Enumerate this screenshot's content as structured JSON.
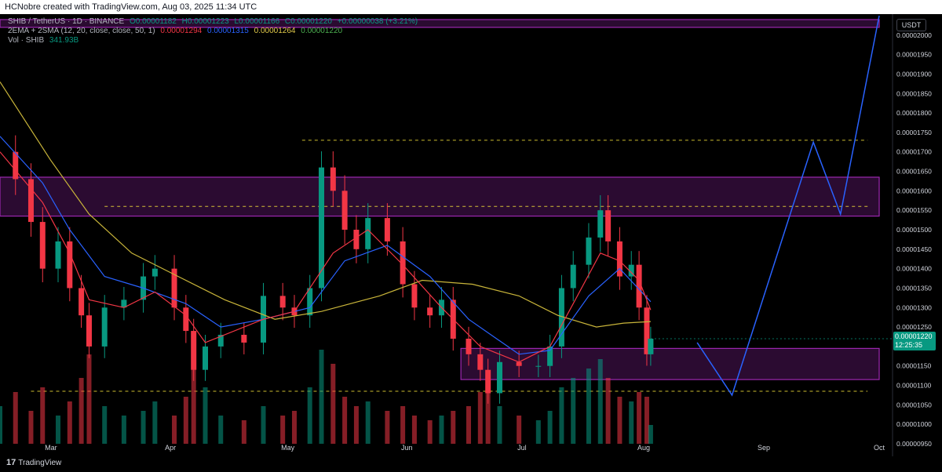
{
  "header": {
    "credit": "HCNobre created with TradingView.com, Aug 03, 2025 11:34 UTC"
  },
  "legend": {
    "symbol_line": {
      "symbol": "SHIB / TetherUS · 1D · BINANCE",
      "o": "O0.00001182",
      "h": "H0.00001223",
      "l": "L0.00001166",
      "c": "C0.00001220",
      "change": "+0.00000038 (+3.21%)"
    },
    "ma_line": {
      "name": "2EMA + 2SMA (12, 20, close, close, 50, 1)",
      "v1": "0.00001294",
      "v2": "0.00001315",
      "v3": "0.00001264",
      "v4": "0.00001220"
    },
    "vol_line": {
      "name": "Vol · SHIB",
      "value": "341.93B"
    }
  },
  "axis": {
    "currency": "USDT",
    "last_price": "0.00001220",
    "countdown": "12:25:35"
  },
  "branding": {
    "logo_text": "TradingView"
  },
  "colors": {
    "up": "#089981",
    "down": "#f23645",
    "zone": "#9c27b0",
    "projection": "#2962ff",
    "ema_fast": "#f23645",
    "ema_slow": "#2962ff",
    "sma": "#c9b53a",
    "dashed": "#ffeb3b"
  },
  "chart_data": {
    "type": "candlestick",
    "ylim": [
      9.5e-06,
      2.05e-05
    ],
    "y_ticks": [
      "0.00002000",
      "0.00001950",
      "0.00001900",
      "0.00001850",
      "0.00001800",
      "0.00001750",
      "0.00001700",
      "0.00001650",
      "0.00001600",
      "0.00001550",
      "0.00001500",
      "0.00001450",
      "0.00001400",
      "0.00001350",
      "0.00001300",
      "0.00001250",
      "0.00001200",
      "0.00001150",
      "0.00001100",
      "0.00001050",
      "0.00001000",
      "0.00000950"
    ],
    "x_ticks": [
      "Mar",
      "Apr",
      "May",
      "Jun",
      "Jul",
      "Aug",
      "Sep",
      "Oct"
    ],
    "x_range": [
      "2025-02-16",
      "2025-10-01"
    ],
    "close_series": [
      [
        "2025-02-16",
        1.7e-05
      ],
      [
        "2025-02-20",
        1.63e-05
      ],
      [
        "2025-02-24",
        1.52e-05
      ],
      [
        "2025-02-27",
        1.4e-05
      ],
      [
        "2025-03-03",
        1.47e-05
      ],
      [
        "2025-03-06",
        1.35e-05
      ],
      [
        "2025-03-09",
        1.28e-05
      ],
      [
        "2025-03-11",
        1.2e-05
      ],
      [
        "2025-03-15",
        1.3e-05
      ],
      [
        "2025-03-20",
        1.32e-05
      ],
      [
        "2025-03-25",
        1.38e-05
      ],
      [
        "2025-03-28",
        1.4e-05
      ],
      [
        "2025-04-02",
        1.3e-05
      ],
      [
        "2025-04-05",
        1.24e-05
      ],
      [
        "2025-04-07",
        1.14e-05
      ],
      [
        "2025-04-10",
        1.2e-05
      ],
      [
        "2025-04-14",
        1.23e-05
      ],
      [
        "2025-04-20",
        1.21e-05
      ],
      [
        "2025-04-25",
        1.33e-05
      ],
      [
        "2025-04-30",
        1.3e-05
      ],
      [
        "2025-05-03",
        1.28e-05
      ],
      [
        "2025-05-07",
        1.35e-05
      ],
      [
        "2025-05-10",
        1.66e-05
      ],
      [
        "2025-05-13",
        1.6e-05
      ],
      [
        "2025-05-16",
        1.5e-05
      ],
      [
        "2025-05-19",
        1.45e-05
      ],
      [
        "2025-05-22",
        1.53e-05
      ],
      [
        "2025-05-27",
        1.47e-05
      ],
      [
        "2025-05-31",
        1.36e-05
      ],
      [
        "2025-06-03",
        1.3e-05
      ],
      [
        "2025-06-07",
        1.28e-05
      ],
      [
        "2025-06-10",
        1.32e-05
      ],
      [
        "2025-06-13",
        1.22e-05
      ],
      [
        "2025-06-17",
        1.18e-05
      ],
      [
        "2025-06-20",
        1.14e-05
      ],
      [
        "2025-06-22",
        1.08e-05
      ],
      [
        "2025-06-25",
        1.16e-05
      ],
      [
        "2025-06-30",
        1.15e-05
      ],
      [
        "2025-07-05",
        1.15e-05
      ],
      [
        "2025-07-08",
        1.2e-05
      ],
      [
        "2025-07-11",
        1.35e-05
      ],
      [
        "2025-07-14",
        1.41e-05
      ],
      [
        "2025-07-18",
        1.48e-05
      ],
      [
        "2025-07-21",
        1.55e-05
      ],
      [
        "2025-07-23",
        1.47e-05
      ],
      [
        "2025-07-26",
        1.38e-05
      ],
      [
        "2025-07-29",
        1.41e-05
      ],
      [
        "2025-07-31",
        1.3e-05
      ],
      [
        "2025-08-02",
        1.18e-05
      ],
      [
        "2025-08-03",
        1.22e-05
      ]
    ],
    "ema12": [
      [
        "2025-02-16",
        1.7e-05
      ],
      [
        "2025-02-27",
        1.57e-05
      ],
      [
        "2025-03-06",
        1.44e-05
      ],
      [
        "2025-03-11",
        1.32e-05
      ],
      [
        "2025-03-20",
        1.3e-05
      ],
      [
        "2025-03-28",
        1.34e-05
      ],
      [
        "2025-04-05",
        1.28e-05
      ],
      [
        "2025-04-10",
        1.21e-05
      ],
      [
        "2025-04-25",
        1.27e-05
      ],
      [
        "2025-05-03",
        1.29e-05
      ],
      [
        "2025-05-13",
        1.44e-05
      ],
      [
        "2025-05-22",
        1.5e-05
      ],
      [
        "2025-05-31",
        1.41e-05
      ],
      [
        "2025-06-10",
        1.3e-05
      ],
      [
        "2025-06-20",
        1.2e-05
      ],
      [
        "2025-06-30",
        1.16e-05
      ],
      [
        "2025-07-08",
        1.2e-05
      ],
      [
        "2025-07-14",
        1.31e-05
      ],
      [
        "2025-07-21",
        1.44e-05
      ],
      [
        "2025-07-26",
        1.42e-05
      ],
      [
        "2025-07-31",
        1.37e-05
      ],
      [
        "2025-08-03",
        1.294e-05
      ]
    ],
    "ema20": [
      [
        "2025-02-16",
        1.74e-05
      ],
      [
        "2025-02-27",
        1.62e-05
      ],
      [
        "2025-03-06",
        1.5e-05
      ],
      [
        "2025-03-15",
        1.38e-05
      ],
      [
        "2025-03-25",
        1.35e-05
      ],
      [
        "2025-04-05",
        1.31e-05
      ],
      [
        "2025-04-14",
        1.25e-05
      ],
      [
        "2025-04-25",
        1.27e-05
      ],
      [
        "2025-05-07",
        1.3e-05
      ],
      [
        "2025-05-16",
        1.42e-05
      ],
      [
        "2025-05-27",
        1.46e-05
      ],
      [
        "2025-06-07",
        1.38e-05
      ],
      [
        "2025-06-17",
        1.27e-05
      ],
      [
        "2025-06-30",
        1.18e-05
      ],
      [
        "2025-07-08",
        1.19e-05
      ],
      [
        "2025-07-18",
        1.33e-05
      ],
      [
        "2025-07-26",
        1.4e-05
      ],
      [
        "2025-08-03",
        1.315e-05
      ]
    ],
    "sma50": [
      [
        "2025-02-16",
        1.88e-05
      ],
      [
        "2025-03-01",
        1.68e-05
      ],
      [
        "2025-03-11",
        1.54e-05
      ],
      [
        "2025-03-22",
        1.44e-05
      ],
      [
        "2025-04-03",
        1.38e-05
      ],
      [
        "2025-04-15",
        1.32e-05
      ],
      [
        "2025-04-28",
        1.27e-05
      ],
      [
        "2025-05-10",
        1.29e-05
      ],
      [
        "2025-05-25",
        1.33e-05
      ],
      [
        "2025-06-05",
        1.37e-05
      ],
      [
        "2025-06-18",
        1.36e-05
      ],
      [
        "2025-06-30",
        1.33e-05
      ],
      [
        "2025-07-10",
        1.28e-05
      ],
      [
        "2025-07-20",
        1.25e-05
      ],
      [
        "2025-07-27",
        1.26e-05
      ],
      [
        "2025-08-03",
        1.264e-05
      ]
    ],
    "volume": [
      [
        "2025-02-16",
        40
      ],
      [
        "2025-02-20",
        55
      ],
      [
        "2025-02-24",
        35
      ],
      [
        "2025-02-27",
        60
      ],
      [
        "2025-03-03",
        30
      ],
      [
        "2025-03-06",
        45
      ],
      [
        "2025-03-09",
        70
      ],
      [
        "2025-03-11",
        95
      ],
      [
        "2025-03-15",
        40
      ],
      [
        "2025-03-20",
        30
      ],
      [
        "2025-03-25",
        35
      ],
      [
        "2025-03-28",
        45
      ],
      [
        "2025-04-02",
        30
      ],
      [
        "2025-04-05",
        50
      ],
      [
        "2025-04-07",
        85
      ],
      [
        "2025-04-10",
        60
      ],
      [
        "2025-04-14",
        30
      ],
      [
        "2025-04-20",
        25
      ],
      [
        "2025-04-25",
        40
      ],
      [
        "2025-04-30",
        30
      ],
      [
        "2025-05-03",
        35
      ],
      [
        "2025-05-07",
        60
      ],
      [
        "2025-05-10",
        100
      ],
      [
        "2025-05-13",
        85
      ],
      [
        "2025-05-16",
        50
      ],
      [
        "2025-05-19",
        40
      ],
      [
        "2025-05-22",
        45
      ],
      [
        "2025-05-27",
        35
      ],
      [
        "2025-05-31",
        40
      ],
      [
        "2025-06-03",
        30
      ],
      [
        "2025-06-07",
        25
      ],
      [
        "2025-06-10",
        30
      ],
      [
        "2025-06-13",
        35
      ],
      [
        "2025-06-17",
        40
      ],
      [
        "2025-06-20",
        55
      ],
      [
        "2025-06-22",
        65
      ],
      [
        "2025-06-25",
        40
      ],
      [
        "2025-06-30",
        30
      ],
      [
        "2025-07-05",
        25
      ],
      [
        "2025-07-08",
        35
      ],
      [
        "2025-07-11",
        60
      ],
      [
        "2025-07-14",
        70
      ],
      [
        "2025-07-18",
        80
      ],
      [
        "2025-07-21",
        90
      ],
      [
        "2025-07-23",
        70
      ],
      [
        "2025-07-26",
        50
      ],
      [
        "2025-07-29",
        45
      ],
      [
        "2025-07-31",
        55
      ],
      [
        "2025-08-02",
        50
      ],
      [
        "2025-08-03",
        20
      ]
    ],
    "zones": [
      {
        "from": "2025-02-16",
        "to": "2025-10-01",
        "low": 1.535e-05,
        "high": 1.635e-05
      },
      {
        "from": "2025-06-15",
        "to": "2025-10-01",
        "low": 1.115e-05,
        "high": 1.195e-05
      },
      {
        "from": "2025-02-16",
        "to": "2025-10-01",
        "low": 2.02e-05,
        "high": 2.04e-05
      }
    ],
    "dashed_levels": [
      {
        "from": "2025-05-05",
        "to": "2025-09-28",
        "price": 1.73e-05
      },
      {
        "from": "2025-03-15",
        "to": "2025-09-28",
        "price": 1.56e-05
      },
      {
        "from": "2025-02-24",
        "to": "2025-09-28",
        "price": 1.085e-05
      }
    ],
    "projection": [
      [
        "2025-08-15",
        1.21e-05
      ],
      [
        "2025-08-24",
        1.075e-05
      ],
      [
        "2025-09-14",
        1.725e-05
      ],
      [
        "2025-09-21",
        1.54e-05
      ],
      [
        "2025-10-01",
        2.05e-05
      ]
    ]
  }
}
